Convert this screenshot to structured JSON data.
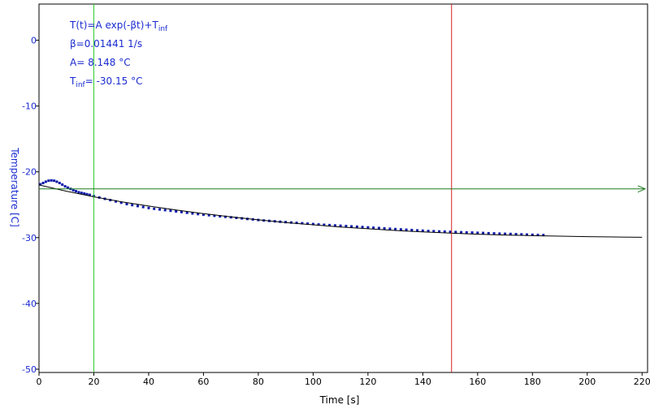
{
  "chart_data": {
    "type": "scatter",
    "title": "",
    "xlabel": "Time [s]",
    "ylabel": "Temperature [C]",
    "xlim": [
      0,
      222
    ],
    "ylim": [
      -50.5,
      5.5
    ],
    "xticks": [
      0,
      20,
      40,
      60,
      80,
      100,
      120,
      140,
      160,
      180,
      200,
      220
    ],
    "yticks": [
      0,
      -10,
      -20,
      -30,
      -40,
      -50
    ],
    "grid": false,
    "annotations": {
      "formula": {
        "main": "T(t)=A exp(-βt)+T",
        "sub": "inf"
      },
      "beta": "β=0.01441 1/s",
      "amp": "A= 8.148 °C",
      "tinf": {
        "base": "T",
        "sub": "inf",
        "rest": "= -30.15 °C"
      }
    },
    "series": [
      {
        "type": "scatter",
        "color": "#0a1aa8",
        "points": [
          [
            0.5,
            -21.9
          ],
          [
            1.5,
            -21.7
          ],
          [
            2.5,
            -21.5
          ],
          [
            3.5,
            -21.35
          ],
          [
            4.5,
            -21.3
          ],
          [
            5.5,
            -21.35
          ],
          [
            6.5,
            -21.5
          ],
          [
            7.5,
            -21.7
          ],
          [
            8.5,
            -21.95
          ],
          [
            9.5,
            -22.2
          ],
          [
            10.5,
            -22.4
          ],
          [
            11.5,
            -22.6
          ],
          [
            12.5,
            -22.8
          ],
          [
            13.5,
            -22.95
          ],
          [
            14.5,
            -23.1
          ],
          [
            15.5,
            -23.2
          ],
          [
            16.5,
            -23.3
          ],
          [
            17.5,
            -23.4
          ],
          [
            18.5,
            -23.5
          ],
          [
            20,
            -23.7
          ],
          [
            22,
            -23.9
          ],
          [
            24,
            -24.1
          ],
          [
            26,
            -24.3
          ],
          [
            28,
            -24.5
          ],
          [
            30,
            -24.7
          ],
          [
            32,
            -24.9
          ],
          [
            34,
            -25.05
          ],
          [
            36,
            -25.2
          ],
          [
            38,
            -25.35
          ],
          [
            40,
            -25.5
          ],
          [
            42,
            -25.62
          ],
          [
            44,
            -25.72
          ],
          [
            46,
            -25.82
          ],
          [
            48,
            -25.92
          ],
          [
            50,
            -26.02
          ],
          [
            52,
            -26.12
          ],
          [
            54,
            -26.22
          ],
          [
            56,
            -26.32
          ],
          [
            58,
            -26.42
          ],
          [
            60,
            -26.52
          ],
          [
            62,
            -26.6
          ],
          [
            64,
            -26.68
          ],
          [
            66,
            -26.76
          ],
          [
            68,
            -26.84
          ],
          [
            70,
            -26.92
          ],
          [
            72,
            -27.0
          ],
          [
            74,
            -27.08
          ],
          [
            76,
            -27.16
          ],
          [
            78,
            -27.24
          ],
          [
            80,
            -27.32
          ],
          [
            82,
            -27.4
          ],
          [
            84,
            -27.46
          ],
          [
            86,
            -27.52
          ],
          [
            88,
            -27.58
          ],
          [
            90,
            -27.64
          ],
          [
            92,
            -27.7
          ],
          [
            94,
            -27.76
          ],
          [
            96,
            -27.82
          ],
          [
            98,
            -27.88
          ],
          [
            100,
            -27.94
          ],
          [
            102,
            -28.0
          ],
          [
            104,
            -28.05
          ],
          [
            106,
            -28.1
          ],
          [
            108,
            -28.15
          ],
          [
            110,
            -28.2
          ],
          [
            112,
            -28.25
          ],
          [
            114,
            -28.3
          ],
          [
            116,
            -28.35
          ],
          [
            118,
            -28.4
          ],
          [
            120,
            -28.45
          ],
          [
            122,
            -28.5
          ],
          [
            124,
            -28.55
          ],
          [
            126,
            -28.6
          ],
          [
            128,
            -28.65
          ],
          [
            130,
            -28.7
          ],
          [
            132,
            -28.75
          ],
          [
            134,
            -28.8
          ],
          [
            136,
            -28.85
          ],
          [
            138,
            -28.9
          ],
          [
            140,
            -28.95
          ],
          [
            142,
            -29.0
          ],
          [
            144,
            -29.03
          ],
          [
            146,
            -29.06
          ],
          [
            148,
            -29.09
          ],
          [
            150,
            -29.12
          ],
          [
            152,
            -29.15
          ],
          [
            154,
            -29.18
          ],
          [
            156,
            -29.21
          ],
          [
            158,
            -29.24
          ],
          [
            160,
            -29.27
          ],
          [
            162,
            -29.3
          ],
          [
            164,
            -29.33
          ],
          [
            166,
            -29.36
          ],
          [
            168,
            -29.39
          ],
          [
            170,
            -29.42
          ],
          [
            172,
            -29.45
          ],
          [
            174,
            -29.48
          ],
          [
            176,
            -29.51
          ],
          [
            178,
            -29.54
          ],
          [
            180,
            -29.57
          ],
          [
            182,
            -29.6
          ],
          [
            184,
            -29.62
          ]
        ]
      },
      {
        "type": "line",
        "color": "#000000",
        "points": [
          [
            0,
            -22.0
          ],
          [
            10,
            -22.95
          ],
          [
            20,
            -23.8
          ],
          [
            30,
            -24.55
          ],
          [
            40,
            -25.2
          ],
          [
            50,
            -25.8
          ],
          [
            60,
            -26.35
          ],
          [
            70,
            -26.85
          ],
          [
            80,
            -27.3
          ],
          [
            90,
            -27.7
          ],
          [
            100,
            -28.05
          ],
          [
            110,
            -28.38
          ],
          [
            120,
            -28.66
          ],
          [
            130,
            -28.91
          ],
          [
            140,
            -29.13
          ],
          [
            150,
            -29.32
          ],
          [
            160,
            -29.48
          ],
          [
            170,
            -29.6
          ],
          [
            180,
            -29.7
          ],
          [
            190,
            -29.78
          ],
          [
            200,
            -29.85
          ],
          [
            210,
            -29.9
          ],
          [
            220,
            -29.95
          ]
        ]
      }
    ],
    "cursors": {
      "vertical_green_x": 20,
      "vertical_red_x": 150.5,
      "horizontal_green_y": -22.6
    }
  }
}
